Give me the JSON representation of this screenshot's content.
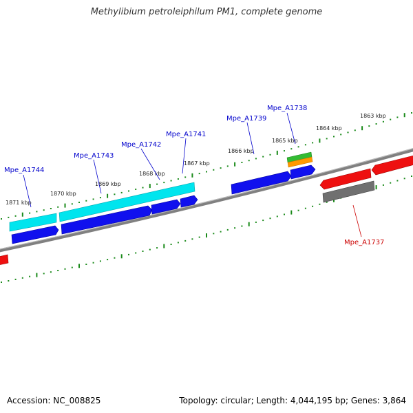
{
  "title": "Methylibium petroleiphilum PM1, complete genome",
  "footer": {
    "accession": "Accession: NC_008825",
    "summary": "Topology: circular; Length: 4,044,195 bp; Genes: 3,864"
  },
  "colors": {
    "backbone": "#808080",
    "ticks": "#1a8a1a",
    "label_forward": "#0000cc",
    "label_reverse": "#cc0000",
    "cyan": "#00e5ee",
    "blue": "#1010ee",
    "red": "#ee1010",
    "gray": "#707070",
    "green": "#33bb33",
    "orange": "#ff9900"
  },
  "scale_labels": [
    "1871 kbp",
    "1870 kbp",
    "1869 kbp",
    "1868 kbp",
    "1867 kbp",
    "1866 kbp",
    "1865 kbp",
    "1864 kbp",
    "1863 kbp"
  ],
  "gene_labels": {
    "forward": [
      "Mpe_A1744",
      "Mpe_A1743",
      "Mpe_A1742",
      "Mpe_A1741",
      "Mpe_A1739",
      "Mpe_A1738"
    ],
    "reverse": [
      "Mpe_A1737"
    ]
  }
}
